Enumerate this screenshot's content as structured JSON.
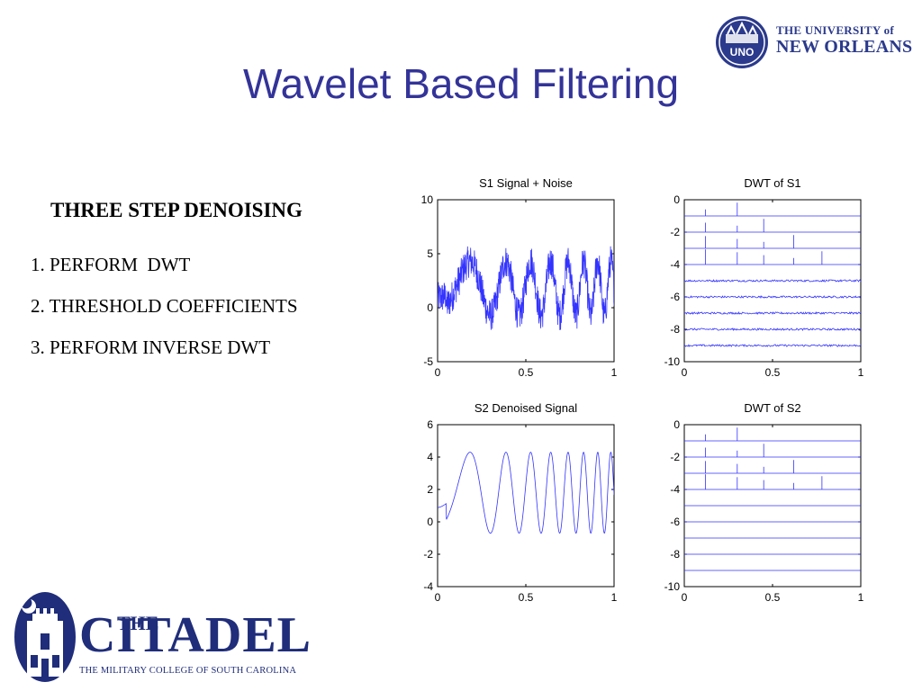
{
  "title": "Wavelet Based Filtering",
  "logos": {
    "uno": {
      "line1": "THE UNIVERSITY of",
      "line2": "NEW ORLEANS",
      "seal": "UNO"
    },
    "citadel": {
      "the": "THE",
      "name": "CITADEL",
      "subtitle": "THE MILITARY COLLEGE OF SOUTH CAROLINA"
    }
  },
  "steps": {
    "heading": "THREE STEP DENOISING",
    "items": [
      "1. PERFORM  DWT",
      "2. THRESHOLD COEFFICIENTS",
      "3. PERFORM INVERSE DWT"
    ]
  },
  "colors": {
    "accent": "#333399",
    "series": "#3333ff"
  },
  "chart_data": [
    {
      "id": "s1",
      "type": "line",
      "title": "S1  Signal + Noise",
      "xlim": [
        0,
        1
      ],
      "ylim": [
        -5,
        10
      ],
      "xticks": [
        "0",
        "0.5",
        "1"
      ],
      "yticks": [
        "10",
        "5",
        "0",
        "-5"
      ],
      "series": [
        {
          "signal": "noisy_chirp",
          "x_range": [
            0,
            1
          ],
          "noise_amplitude": 1.5
        }
      ]
    },
    {
      "id": "dwt1",
      "type": "line",
      "title": "DWT of S1",
      "xlim": [
        0,
        1
      ],
      "ylim": [
        -10,
        0
      ],
      "xticks": [
        "0",
        "0.5",
        "1"
      ],
      "yticks": [
        "0",
        "-2",
        "-4",
        "-6",
        "-8",
        "-10"
      ],
      "levels": [
        -1,
        -2,
        -3,
        -4,
        -5,
        -6,
        -7,
        -8,
        -9
      ],
      "series": [
        {
          "signal": "wavelet_levels",
          "noisy": true
        }
      ]
    },
    {
      "id": "s2",
      "type": "line",
      "title": "S2 Denoised  Signal",
      "xlim": [
        0,
        1
      ],
      "ylim": [
        -4,
        6
      ],
      "xticks": [
        "0",
        "0.5",
        "1"
      ],
      "yticks": [
        "6",
        "4",
        "2",
        "0",
        "-2",
        "-4"
      ],
      "series": [
        {
          "signal": "clean_chirp",
          "x_range": [
            0,
            1
          ]
        }
      ]
    },
    {
      "id": "dwt2",
      "type": "line",
      "title": "DWT of S2",
      "xlim": [
        0,
        1
      ],
      "ylim": [
        -10,
        0
      ],
      "xticks": [
        "0",
        "0.5",
        "1"
      ],
      "yticks": [
        "0",
        "-2",
        "-4",
        "-6",
        "-8",
        "-10"
      ],
      "levels": [
        -1,
        -2,
        -3,
        -4,
        -5,
        -6,
        -7,
        -8,
        -9
      ],
      "series": [
        {
          "signal": "wavelet_levels",
          "noisy": false
        }
      ]
    }
  ]
}
